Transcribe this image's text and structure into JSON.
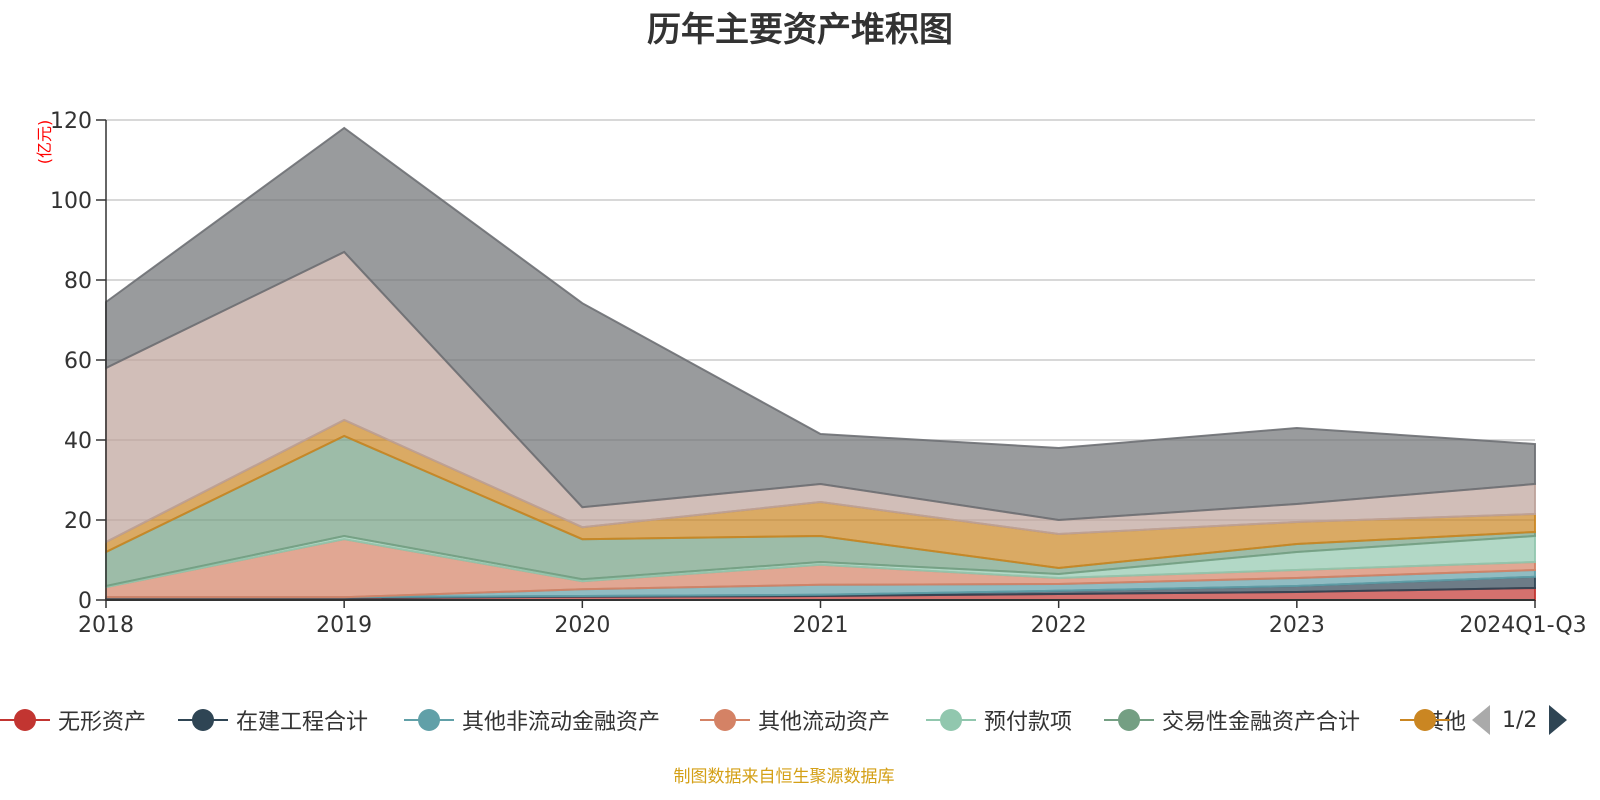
{
  "title": "历年主要资产堆积图",
  "source_note": "制图数据来自恒生聚源数据库",
  "legend_pager": {
    "text": "1/2"
  },
  "chart_data": {
    "type": "area",
    "stacked": true,
    "categories": [
      "2018",
      "2019",
      "2020",
      "2021",
      "2022",
      "2023",
      "2024Q1-Q3"
    ],
    "ylabel": "(亿元)",
    "ylim": [
      0,
      120
    ],
    "yticks": [
      0,
      20,
      40,
      60,
      80,
      100,
      120
    ],
    "grid": true,
    "legend_position": "bottom",
    "series": [
      {
        "name": "无形资产",
        "color": "#c23531",
        "values": [
          0.5,
          0.5,
          0.8,
          1.0,
          1.5,
          2.0,
          3.0
        ]
      },
      {
        "name": "在建工程合计",
        "color": "#2f4554",
        "values": [
          0.2,
          0.2,
          0.2,
          0.3,
          0.8,
          1.5,
          2.8
        ]
      },
      {
        "name": "其他非流动金融资产",
        "color": "#61a0a8",
        "values": [
          0.0,
          0.0,
          1.7,
          2.5,
          1.7,
          2.0,
          1.7
        ]
      },
      {
        "name": "其他流动资产",
        "color": "#d48265",
        "values": [
          2.5,
          14.5,
          2.0,
          5.0,
          1.5,
          2.0,
          2.0
        ]
      },
      {
        "name": "预付款项",
        "color": "#91c7ae",
        "values": [
          0.3,
          0.8,
          0.5,
          0.7,
          1.0,
          4.5,
          6.5
        ]
      },
      {
        "name": "交易性金融资产合计",
        "color": "#749f83",
        "values": [
          8.5,
          25.0,
          10.0,
          6.5,
          1.5,
          2.0,
          1.0
        ]
      },
      {
        "name": "其他",
        "color": "#ca8622",
        "values": [
          2.5,
          4.0,
          3.0,
          8.5,
          8.5,
          5.5,
          4.5
        ]
      },
      {
        "name": "",
        "color": "#bda29a",
        "values": [
          43.5,
          42.0,
          5.0,
          4.5,
          3.5,
          4.5,
          7.5
        ]
      },
      {
        "name": "",
        "color": "#6e7074",
        "values": [
          16.5,
          31.0,
          51.0,
          12.5,
          18.0,
          19.0,
          10.0
        ]
      }
    ]
  }
}
